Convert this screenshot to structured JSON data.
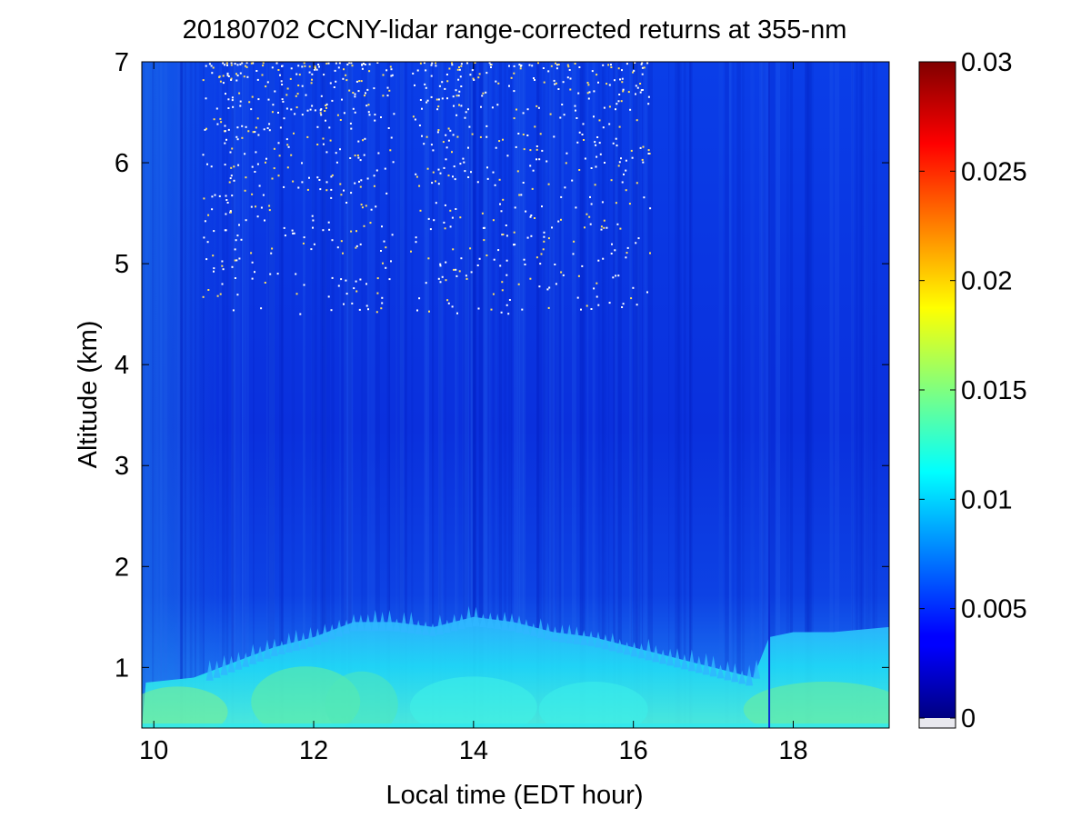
{
  "chart_data": {
    "type": "heatmap",
    "title": "20180702 CCNY-lidar range-corrected returns at 355-nm",
    "xlabel": "Local time (EDT hour)",
    "ylabel": "Altitude (km)",
    "xlim": [
      9.85,
      19.2
    ],
    "ylim": [
      0.4,
      7.0
    ],
    "x_ticks": [
      10,
      12,
      14,
      16,
      18
    ],
    "y_ticks": [
      1,
      2,
      3,
      4,
      5,
      6,
      7
    ],
    "colorbar": {
      "min": 0,
      "max": 0.03,
      "ticks": [
        0,
        0.005,
        0.01,
        0.015,
        0.02,
        0.025,
        0.03
      ],
      "tick_labels": [
        "0",
        "0.005",
        "0.01",
        "0.015",
        "0.02",
        "0.025",
        "0.03"
      ],
      "colormap": "jet"
    },
    "boundary_layer_top_km": {
      "time": [
        9.9,
        10.5,
        11.0,
        11.5,
        12.0,
        12.5,
        13.0,
        13.5,
        14.0,
        14.5,
        15.0,
        15.5,
        16.0,
        16.5,
        17.0,
        17.5,
        17.7,
        18.0,
        18.5,
        19.2
      ],
      "height": [
        0.85,
        0.9,
        1.05,
        1.2,
        1.3,
        1.45,
        1.45,
        1.4,
        1.5,
        1.45,
        1.35,
        1.3,
        1.2,
        1.1,
        1.0,
        0.9,
        1.3,
        1.35,
        1.35,
        1.4
      ]
    },
    "data_gap_at_hour": 17.7,
    "noise_region_km": [
      4.5,
      7.0
    ]
  }
}
